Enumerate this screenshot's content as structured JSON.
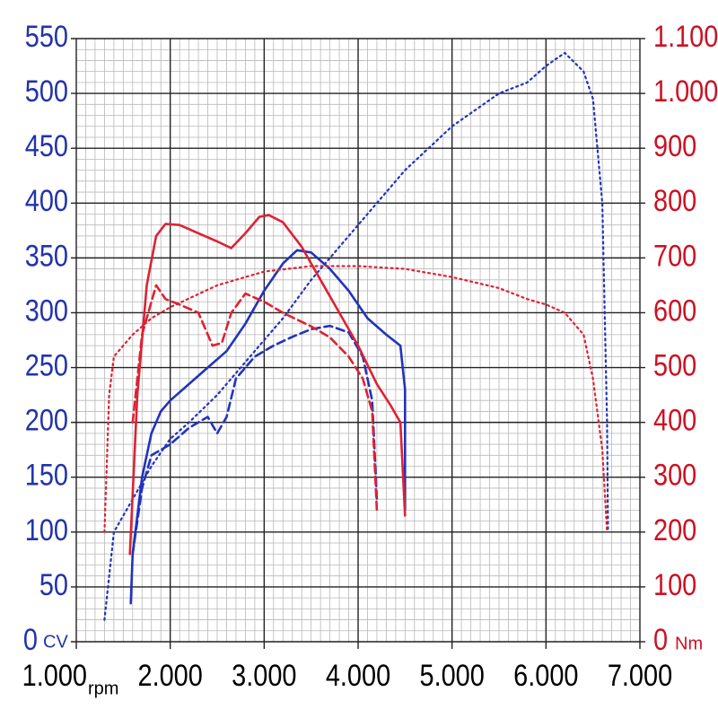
{
  "chart_data": {
    "type": "line",
    "x_unit": "rpm",
    "y_unit": "CV",
    "y2_unit": "Nm",
    "xlim": [
      1000,
      7000
    ],
    "xticks": [
      {
        "value": 1000,
        "label": "1.000"
      },
      {
        "value": 2000,
        "label": "2.000"
      },
      {
        "value": 3000,
        "label": "3.000"
      },
      {
        "value": 4000,
        "label": "4.000"
      },
      {
        "value": 5000,
        "label": "5.000"
      },
      {
        "value": 6000,
        "label": "6.000"
      },
      {
        "value": 7000,
        "label": "7.000"
      }
    ],
    "ylim": [
      0,
      550
    ],
    "yticks": [
      0,
      50,
      100,
      150,
      200,
      250,
      300,
      350,
      400,
      450,
      500,
      550
    ],
    "y2lim": [
      0,
      1100
    ],
    "y2ticks": [
      0,
      100,
      200,
      300,
      400,
      500,
      600,
      700,
      800,
      900,
      {
        "value": 1000,
        "label": "1.000"
      },
      {
        "value": 1100,
        "label": "1.100"
      }
    ],
    "grid": true,
    "series": [
      {
        "color": "#2233bb",
        "dash": "solid",
        "axis": "y",
        "x": [
          1580,
          1600,
          1700,
          1800,
          1900,
          2000,
          2200,
          2400,
          2600,
          2800,
          3000,
          3200,
          3350,
          3500,
          3700,
          3900,
          4100,
          4300,
          4450,
          4500,
          4500
        ],
        "values": [
          35,
          80,
          150,
          190,
          210,
          220,
          235,
          250,
          265,
          290,
          320,
          345,
          357,
          355,
          340,
          320,
          295,
          280,
          270,
          230,
          120
        ]
      },
      {
        "color": "#2233bb",
        "dash": "dashed",
        "axis": "y",
        "x": [
          1600,
          1700,
          1800,
          1900,
          2000,
          2200,
          2400,
          2500,
          2600,
          2700,
          2900,
          3100,
          3300,
          3500,
          3700,
          3900,
          4050,
          4150,
          4200
        ],
        "values": [
          80,
          140,
          170,
          175,
          180,
          195,
          205,
          190,
          205,
          240,
          260,
          270,
          278,
          285,
          288,
          282,
          260,
          220,
          130
        ]
      },
      {
        "color": "#2233bb",
        "dash": "dotted",
        "axis": "y",
        "x": [
          1300,
          1400,
          1600,
          1800,
          2000,
          2200,
          2500,
          2800,
          3000,
          3200,
          3500,
          4000,
          4500,
          5000,
          5500,
          5800,
          6000,
          6200,
          6400,
          6500,
          6600,
          6650,
          6660
        ],
        "values": [
          20,
          100,
          130,
          160,
          185,
          200,
          225,
          255,
          275,
          295,
          330,
          380,
          430,
          470,
          500,
          510,
          525,
          537,
          520,
          495,
          400,
          200,
          102
        ]
      },
      {
        "color": "#dd2233",
        "dash": "solid",
        "axis": "y2",
        "x": [
          1570,
          1650,
          1750,
          1850,
          1950,
          2100,
          2300,
          2500,
          2650,
          2800,
          2950,
          3050,
          3200,
          3400,
          3600,
          3800,
          4000,
          4200,
          4350,
          4450,
          4500
        ],
        "values": [
          160,
          450,
          650,
          740,
          762,
          760,
          745,
          730,
          718,
          745,
          775,
          778,
          765,
          720,
          660,
          600,
          540,
          470,
          430,
          400,
          230
        ]
      },
      {
        "color": "#dd2233",
        "dash": "dashed",
        "axis": "y2",
        "x": [
          1600,
          1700,
          1800,
          1850,
          1950,
          2100,
          2300,
          2450,
          2550,
          2650,
          2800,
          3000,
          3200,
          3500,
          3700,
          3900,
          4050,
          4150,
          4200
        ],
        "values": [
          400,
          560,
          620,
          650,
          625,
          615,
          600,
          540,
          545,
          600,
          635,
          620,
          600,
          575,
          555,
          520,
          480,
          420,
          240
        ]
      },
      {
        "color": "#dd2233",
        "dash": "dotted",
        "axis": "y2",
        "x": [
          1300,
          1350,
          1400,
          1600,
          1800,
          2000,
          2500,
          3000,
          3500,
          4000,
          4500,
          5000,
          5500,
          5800,
          6000,
          6200,
          6400,
          6500,
          6600,
          6650
        ],
        "values": [
          200,
          450,
          520,
          560,
          590,
          610,
          650,
          675,
          685,
          685,
          680,
          665,
          645,
          625,
          615,
          600,
          560,
          480,
          350,
          200
        ]
      }
    ]
  }
}
